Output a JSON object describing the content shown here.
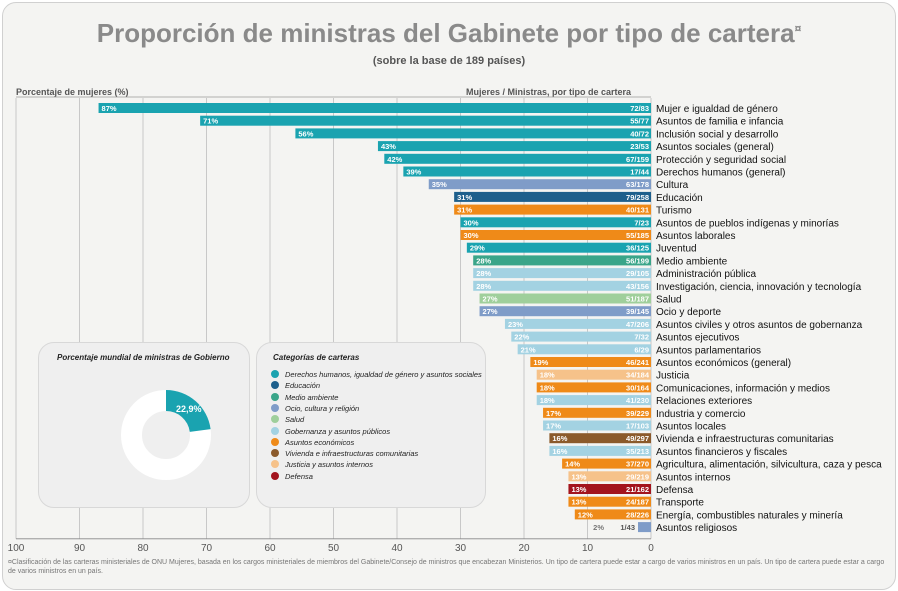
{
  "title": "Proporción de ministras del Gabinete por tipo de cartera",
  "title_mark": "¤",
  "subtitle": "(sobre la base de 189 países)",
  "left_header": "Porcentaje de mujeres (%)",
  "right_header": "Mujeres / Ministras, por tipo de cartera",
  "colors": {
    "teal": "#1aa3b0",
    "navy": "#1d5f8c",
    "green": "#3aa589",
    "lavender": "#7f9cc8",
    "lightgreen": "#9fcf9b",
    "lightblue": "#a3d2e2",
    "orange": "#ef8a18",
    "brown": "#8b5a2b",
    "peach": "#f6c28a",
    "darkred": "#a3141d"
  },
  "chart_data": {
    "type": "bar",
    "orientation": "horizontal",
    "xlim": [
      100,
      0
    ],
    "xticks": [
      100,
      90,
      80,
      70,
      60,
      50,
      40,
      30,
      20,
      10,
      0
    ],
    "series": [
      {
        "name": "Mujer e igualdad de género",
        "value": 87,
        "pct_label": "87%",
        "ratio": "72/83",
        "cat": "teal"
      },
      {
        "name": "Asuntos de familia e infancia",
        "value": 71,
        "pct_label": "71%",
        "ratio": "55/77",
        "cat": "teal"
      },
      {
        "name": "Inclusión social y desarrollo",
        "value": 56,
        "pct_label": "56%",
        "ratio": "40/72",
        "cat": "teal"
      },
      {
        "name": "Asuntos sociales (general)",
        "value": 43,
        "pct_label": "43%",
        "ratio": "23/53",
        "cat": "teal"
      },
      {
        "name": "Protección y seguridad social",
        "value": 42,
        "pct_label": "42%",
        "ratio": "67/159",
        "cat": "teal"
      },
      {
        "name": "Derechos humanos (general)",
        "value": 39,
        "pct_label": "39%",
        "ratio": "17/44",
        "cat": "teal"
      },
      {
        "name": "Cultura",
        "value": 35,
        "pct_label": "35%",
        "ratio": "63/178",
        "cat": "lavender"
      },
      {
        "name": "Educación",
        "value": 31,
        "pct_label": "31%",
        "ratio": "79/258",
        "cat": "navy"
      },
      {
        "name": "Turismo",
        "value": 31,
        "pct_label": "31%",
        "ratio": "40/131",
        "cat": "orange"
      },
      {
        "name": "Asuntos de pueblos indígenas y minorías",
        "value": 30,
        "pct_label": "30%",
        "ratio": "7/23",
        "cat": "teal"
      },
      {
        "name": "Asuntos laborales",
        "value": 30,
        "pct_label": "30%",
        "ratio": "55/185",
        "cat": "orange"
      },
      {
        "name": "Juventud",
        "value": 29,
        "pct_label": "29%",
        "ratio": "36/125",
        "cat": "teal"
      },
      {
        "name": "Medio ambiente",
        "value": 28,
        "pct_label": "28%",
        "ratio": "56/199",
        "cat": "green"
      },
      {
        "name": "Administración pública",
        "value": 28,
        "pct_label": "28%",
        "ratio": "29/105",
        "cat": "lightblue"
      },
      {
        "name": "Investigación, ciencia, innovación y tecnología",
        "value": 28,
        "pct_label": "28%",
        "ratio": "43/156",
        "cat": "lightblue"
      },
      {
        "name": "Salud",
        "value": 27,
        "pct_label": "27%",
        "ratio": "51/187",
        "cat": "lightgreen"
      },
      {
        "name": "Ocio y deporte",
        "value": 27,
        "pct_label": "27%",
        "ratio": "39/145",
        "cat": "lavender"
      },
      {
        "name": "Asuntos civiles y otros asuntos de gobernanza",
        "value": 23,
        "pct_label": "23%",
        "ratio": "47/206",
        "cat": "lightblue"
      },
      {
        "name": "Asuntos ejecutivos",
        "value": 22,
        "pct_label": "22%",
        "ratio": "7/32",
        "cat": "lightblue"
      },
      {
        "name": "Asuntos parlamentarios",
        "value": 21,
        "pct_label": "21%",
        "ratio": "6/29",
        "cat": "lightblue"
      },
      {
        "name": "Asuntos económicos (general)",
        "value": 19,
        "pct_label": "19%",
        "ratio": "46/241",
        "cat": "orange"
      },
      {
        "name": "Justicia",
        "value": 18,
        "pct_label": "18%",
        "ratio": "34/184",
        "cat": "peach"
      },
      {
        "name": "Comunicaciones, información y medios",
        "value": 18,
        "pct_label": "18%",
        "ratio": "30/164",
        "cat": "orange"
      },
      {
        "name": "Relaciones exteriores",
        "value": 18,
        "pct_label": "18%",
        "ratio": "41/230",
        "cat": "lightblue"
      },
      {
        "name": "Industria y comercio",
        "value": 17,
        "pct_label": "17%",
        "ratio": "39/229",
        "cat": "orange"
      },
      {
        "name": "Asuntos locales",
        "value": 17,
        "pct_label": "17%",
        "ratio": "17/103",
        "cat": "lightblue"
      },
      {
        "name": "Vivienda e infraestructuras comunitarias",
        "value": 16,
        "pct_label": "16%",
        "ratio": "49/297",
        "cat": "brown"
      },
      {
        "name": "Asuntos financieros y fiscales",
        "value": 16,
        "pct_label": "16%",
        "ratio": "35/213",
        "cat": "lightblue"
      },
      {
        "name": "Agricultura, alimentación, silvicultura, caza y pesca",
        "value": 14,
        "pct_label": "14%",
        "ratio": "37/270",
        "cat": "orange"
      },
      {
        "name": "Asuntos internos",
        "value": 13,
        "pct_label": "13%",
        "ratio": "29/219",
        "cat": "peach"
      },
      {
        "name": "Defensa",
        "value": 13,
        "pct_label": "13%",
        "ratio": "21/162",
        "cat": "darkred"
      },
      {
        "name": "Transporte",
        "value": 13,
        "pct_label": "13%",
        "ratio": "24/187",
        "cat": "orange"
      },
      {
        "name": "Energía, combustibles naturales y minería",
        "value": 12,
        "pct_label": "12%",
        "ratio": "28/226",
        "cat": "orange"
      },
      {
        "name": "Asuntos religiosos",
        "value": 2,
        "pct_label": "2%",
        "ratio": "1/43",
        "cat": "lavender"
      }
    ]
  },
  "donut": {
    "title": "Porcentaje mundial de ministras de Gobierno",
    "value": 22.9,
    "label": "22,9%"
  },
  "legend": {
    "title": "Categorías de carteras",
    "items": [
      {
        "label": "Derechos humanos, igualdad de género y asuntos sociales",
        "cat": "teal"
      },
      {
        "label": "Educación",
        "cat": "navy"
      },
      {
        "label": "Medio ambiente",
        "cat": "green"
      },
      {
        "label": "Ocio, cultura y religión",
        "cat": "lavender"
      },
      {
        "label": "Salud",
        "cat": "lightgreen"
      },
      {
        "label": "Gobernanza y asuntos públicos",
        "cat": "lightblue"
      },
      {
        "label": "Asuntos económicos",
        "cat": "orange"
      },
      {
        "label": "Vivienda e infraestructuras comunitarias",
        "cat": "brown"
      },
      {
        "label": "Justicia y asuntos internos",
        "cat": "peach"
      },
      {
        "label": "Defensa",
        "cat": "darkred"
      }
    ]
  },
  "footnote": "¤Clasificación de las carteras ministeriales de ONU Mujeres, basada en los cargos ministeriales de miembros del Gabinete/Consejo de ministros que encabezan Ministerios. Un tipo de cartera puede estar a cargo de varios ministros en un país.  Un tipo de cartera puede estar a cargo de varios ministros en un país."
}
